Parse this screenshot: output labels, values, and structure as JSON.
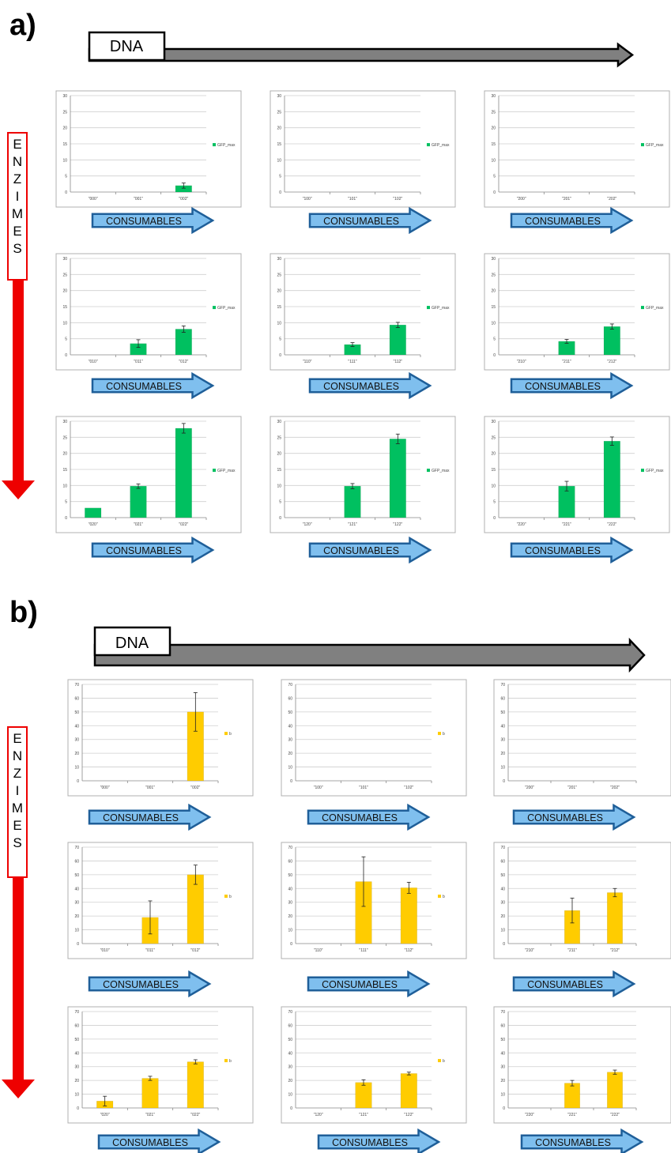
{
  "panels": [
    {
      "label": "a)",
      "dna_label": "DNA",
      "axis_label": "ENZIMES",
      "consumables_label": "CONSUMABLES",
      "bar_color": "#00c060",
      "legend": "GFP_max"
    },
    {
      "label": "b)",
      "dna_label": "DNA",
      "axis_label": "ENZIMES",
      "consumables_label": "CONSUMABLES",
      "bar_color": "#ffcc00",
      "legend": "b"
    }
  ],
  "colors": {
    "red_arrow": "#ee0000",
    "dna_arrow": "#808080",
    "consumables_fill": "#7fbfee",
    "consumables_stroke": "#1f5f99",
    "green_bar": "#00c060",
    "yellow_bar": "#ffcc00"
  },
  "chart_data": [
    {
      "panel": "a)",
      "type": "bar",
      "categories": [
        "\"000\"",
        "\"001\"",
        "\"002\""
      ],
      "values": [
        0,
        0,
        2
      ],
      "errors": [
        0,
        0,
        0.8
      ],
      "yticks": [
        0,
        5,
        10,
        15,
        20,
        25,
        30
      ],
      "ylim": [
        0,
        30
      ],
      "legend": "GFP_max"
    },
    {
      "panel": "a)",
      "type": "bar",
      "categories": [
        "\"100\"",
        "\"101\"",
        "\"102\""
      ],
      "values": [
        0,
        0,
        0
      ],
      "errors": [
        0,
        0,
        0
      ],
      "yticks": [
        0,
        5,
        10,
        15,
        20,
        25,
        30
      ],
      "ylim": [
        0,
        30
      ],
      "legend": "GFP_max"
    },
    {
      "panel": "a)",
      "type": "bar",
      "categories": [
        "\"200\"",
        "\"201\"",
        "\"202\""
      ],
      "values": [
        0,
        0,
        0
      ],
      "errors": [
        0,
        0,
        0
      ],
      "yticks": [
        0,
        5,
        10,
        15,
        20,
        25,
        30
      ],
      "ylim": [
        0,
        30
      ],
      "legend": "GFP_max"
    },
    {
      "panel": "a)",
      "type": "bar",
      "categories": [
        "\"010\"",
        "\"011\"",
        "\"012\""
      ],
      "values": [
        0,
        3.5,
        8
      ],
      "errors": [
        0,
        1.2,
        1
      ],
      "yticks": [
        0,
        5,
        10,
        15,
        20,
        25,
        30
      ],
      "ylim": [
        0,
        30
      ],
      "legend": "GFP_max"
    },
    {
      "panel": "a)",
      "type": "bar",
      "categories": [
        "\"110\"",
        "\"111\"",
        "\"112\""
      ],
      "values": [
        0,
        3.2,
        9.3
      ],
      "errors": [
        0,
        0.6,
        0.8
      ],
      "yticks": [
        0,
        5,
        10,
        15,
        20,
        25,
        30
      ],
      "ylim": [
        0,
        30
      ],
      "legend": "GFP_max"
    },
    {
      "panel": "a)",
      "type": "bar",
      "categories": [
        "\"210\"",
        "\"211\"",
        "\"212\""
      ],
      "values": [
        0,
        4.2,
        8.8
      ],
      "errors": [
        0,
        0.6,
        0.8
      ],
      "yticks": [
        0,
        5,
        10,
        15,
        20,
        25,
        30
      ],
      "ylim": [
        0,
        30
      ],
      "legend": "GFP_max"
    },
    {
      "panel": "a)",
      "type": "bar",
      "categories": [
        "\"020\"",
        "\"021\"",
        "\"022\""
      ],
      "values": [
        3,
        9.8,
        27.8
      ],
      "errors": [
        0,
        0.7,
        1.5
      ],
      "yticks": [
        0,
        5,
        10,
        15,
        20,
        25,
        30
      ],
      "ylim": [
        0,
        30
      ],
      "legend": "GFP_max"
    },
    {
      "panel": "a)",
      "type": "bar",
      "categories": [
        "\"120\"",
        "\"121\"",
        "\"122\""
      ],
      "values": [
        0,
        9.8,
        24.5
      ],
      "errors": [
        0,
        0.8,
        1.5
      ],
      "yticks": [
        0,
        5,
        10,
        15,
        20,
        25,
        30
      ],
      "ylim": [
        0,
        30
      ],
      "legend": "GFP_max"
    },
    {
      "panel": "a)",
      "type": "bar",
      "categories": [
        "\"220\"",
        "\"221\"",
        "\"222\""
      ],
      "values": [
        0,
        9.8,
        23.8
      ],
      "errors": [
        0,
        1.5,
        1.3
      ],
      "yticks": [
        0,
        5,
        10,
        15,
        20,
        25,
        30
      ],
      "ylim": [
        0,
        30
      ],
      "legend": "GFP_max"
    },
    {
      "panel": "b)",
      "type": "bar",
      "categories": [
        "\"000\"",
        "\"001\"",
        "\"002\""
      ],
      "values": [
        0,
        0,
        50
      ],
      "errors": [
        0,
        0,
        14
      ],
      "yticks": [
        0,
        10,
        20,
        30,
        40,
        50,
        60,
        70
      ],
      "ylim": [
        0,
        70
      ],
      "legend": "b"
    },
    {
      "panel": "b)",
      "type": "bar",
      "categories": [
        "\"100\"",
        "\"101\"",
        "\"102\""
      ],
      "values": [
        0,
        0,
        0
      ],
      "errors": [
        0,
        0,
        0
      ],
      "yticks": [
        0,
        10,
        20,
        30,
        40,
        50,
        60,
        70
      ],
      "ylim": [
        0,
        70
      ],
      "legend": "b"
    },
    {
      "panel": "b)",
      "type": "bar",
      "categories": [
        "\"200\"",
        "\"201\"",
        "\"202\""
      ],
      "values": [
        0,
        0,
        0
      ],
      "errors": [
        0,
        0,
        0
      ],
      "yticks": [
        0,
        10,
        20,
        30,
        40,
        50,
        60,
        70
      ],
      "ylim": [
        0,
        70
      ],
      "legend": ""
    },
    {
      "panel": "b)",
      "type": "bar",
      "categories": [
        "\"010\"",
        "\"011\"",
        "\"012\""
      ],
      "values": [
        0,
        19,
        50
      ],
      "errors": [
        0,
        12,
        7
      ],
      "yticks": [
        0,
        10,
        20,
        30,
        40,
        50,
        60,
        70
      ],
      "ylim": [
        0,
        70
      ],
      "legend": "b"
    },
    {
      "panel": "b)",
      "type": "bar",
      "categories": [
        "\"110\"",
        "\"111\"",
        "\"112\""
      ],
      "values": [
        0,
        45,
        40.5
      ],
      "errors": [
        0,
        18,
        4
      ],
      "yticks": [
        0,
        10,
        20,
        30,
        40,
        50,
        60,
        70
      ],
      "ylim": [
        0,
        70
      ],
      "legend": "b"
    },
    {
      "panel": "b)",
      "type": "bar",
      "categories": [
        "\"210\"",
        "\"211\"",
        "\"212\""
      ],
      "values": [
        0,
        24,
        37
      ],
      "errors": [
        0,
        9,
        3
      ],
      "yticks": [
        0,
        10,
        20,
        30,
        40,
        50,
        60,
        70
      ],
      "ylim": [
        0,
        70
      ],
      "legend": ""
    },
    {
      "panel": "b)",
      "type": "bar",
      "categories": [
        "\"020\"",
        "\"021\"",
        "\"022\""
      ],
      "values": [
        5,
        21.5,
        33.5
      ],
      "errors": [
        3.5,
        1.5,
        1.5
      ],
      "yticks": [
        0,
        10,
        20,
        30,
        40,
        50,
        60,
        70
      ],
      "ylim": [
        0,
        70
      ],
      "legend": "b"
    },
    {
      "panel": "b)",
      "type": "bar",
      "categories": [
        "\"120\"",
        "\"121\"",
        "\"122\""
      ],
      "values": [
        0,
        18.5,
        25
      ],
      "errors": [
        0,
        2,
        1
      ],
      "yticks": [
        0,
        10,
        20,
        30,
        40,
        50,
        60,
        70
      ],
      "ylim": [
        0,
        70
      ],
      "legend": "b"
    },
    {
      "panel": "b)",
      "type": "bar",
      "categories": [
        "\"220\"",
        "\"221\"",
        "\"222\""
      ],
      "values": [
        0,
        18,
        26
      ],
      "errors": [
        0,
        2,
        1.5
      ],
      "yticks": [
        0,
        10,
        20,
        30,
        40,
        50,
        60,
        70
      ],
      "ylim": [
        0,
        70
      ],
      "legend": ""
    }
  ]
}
